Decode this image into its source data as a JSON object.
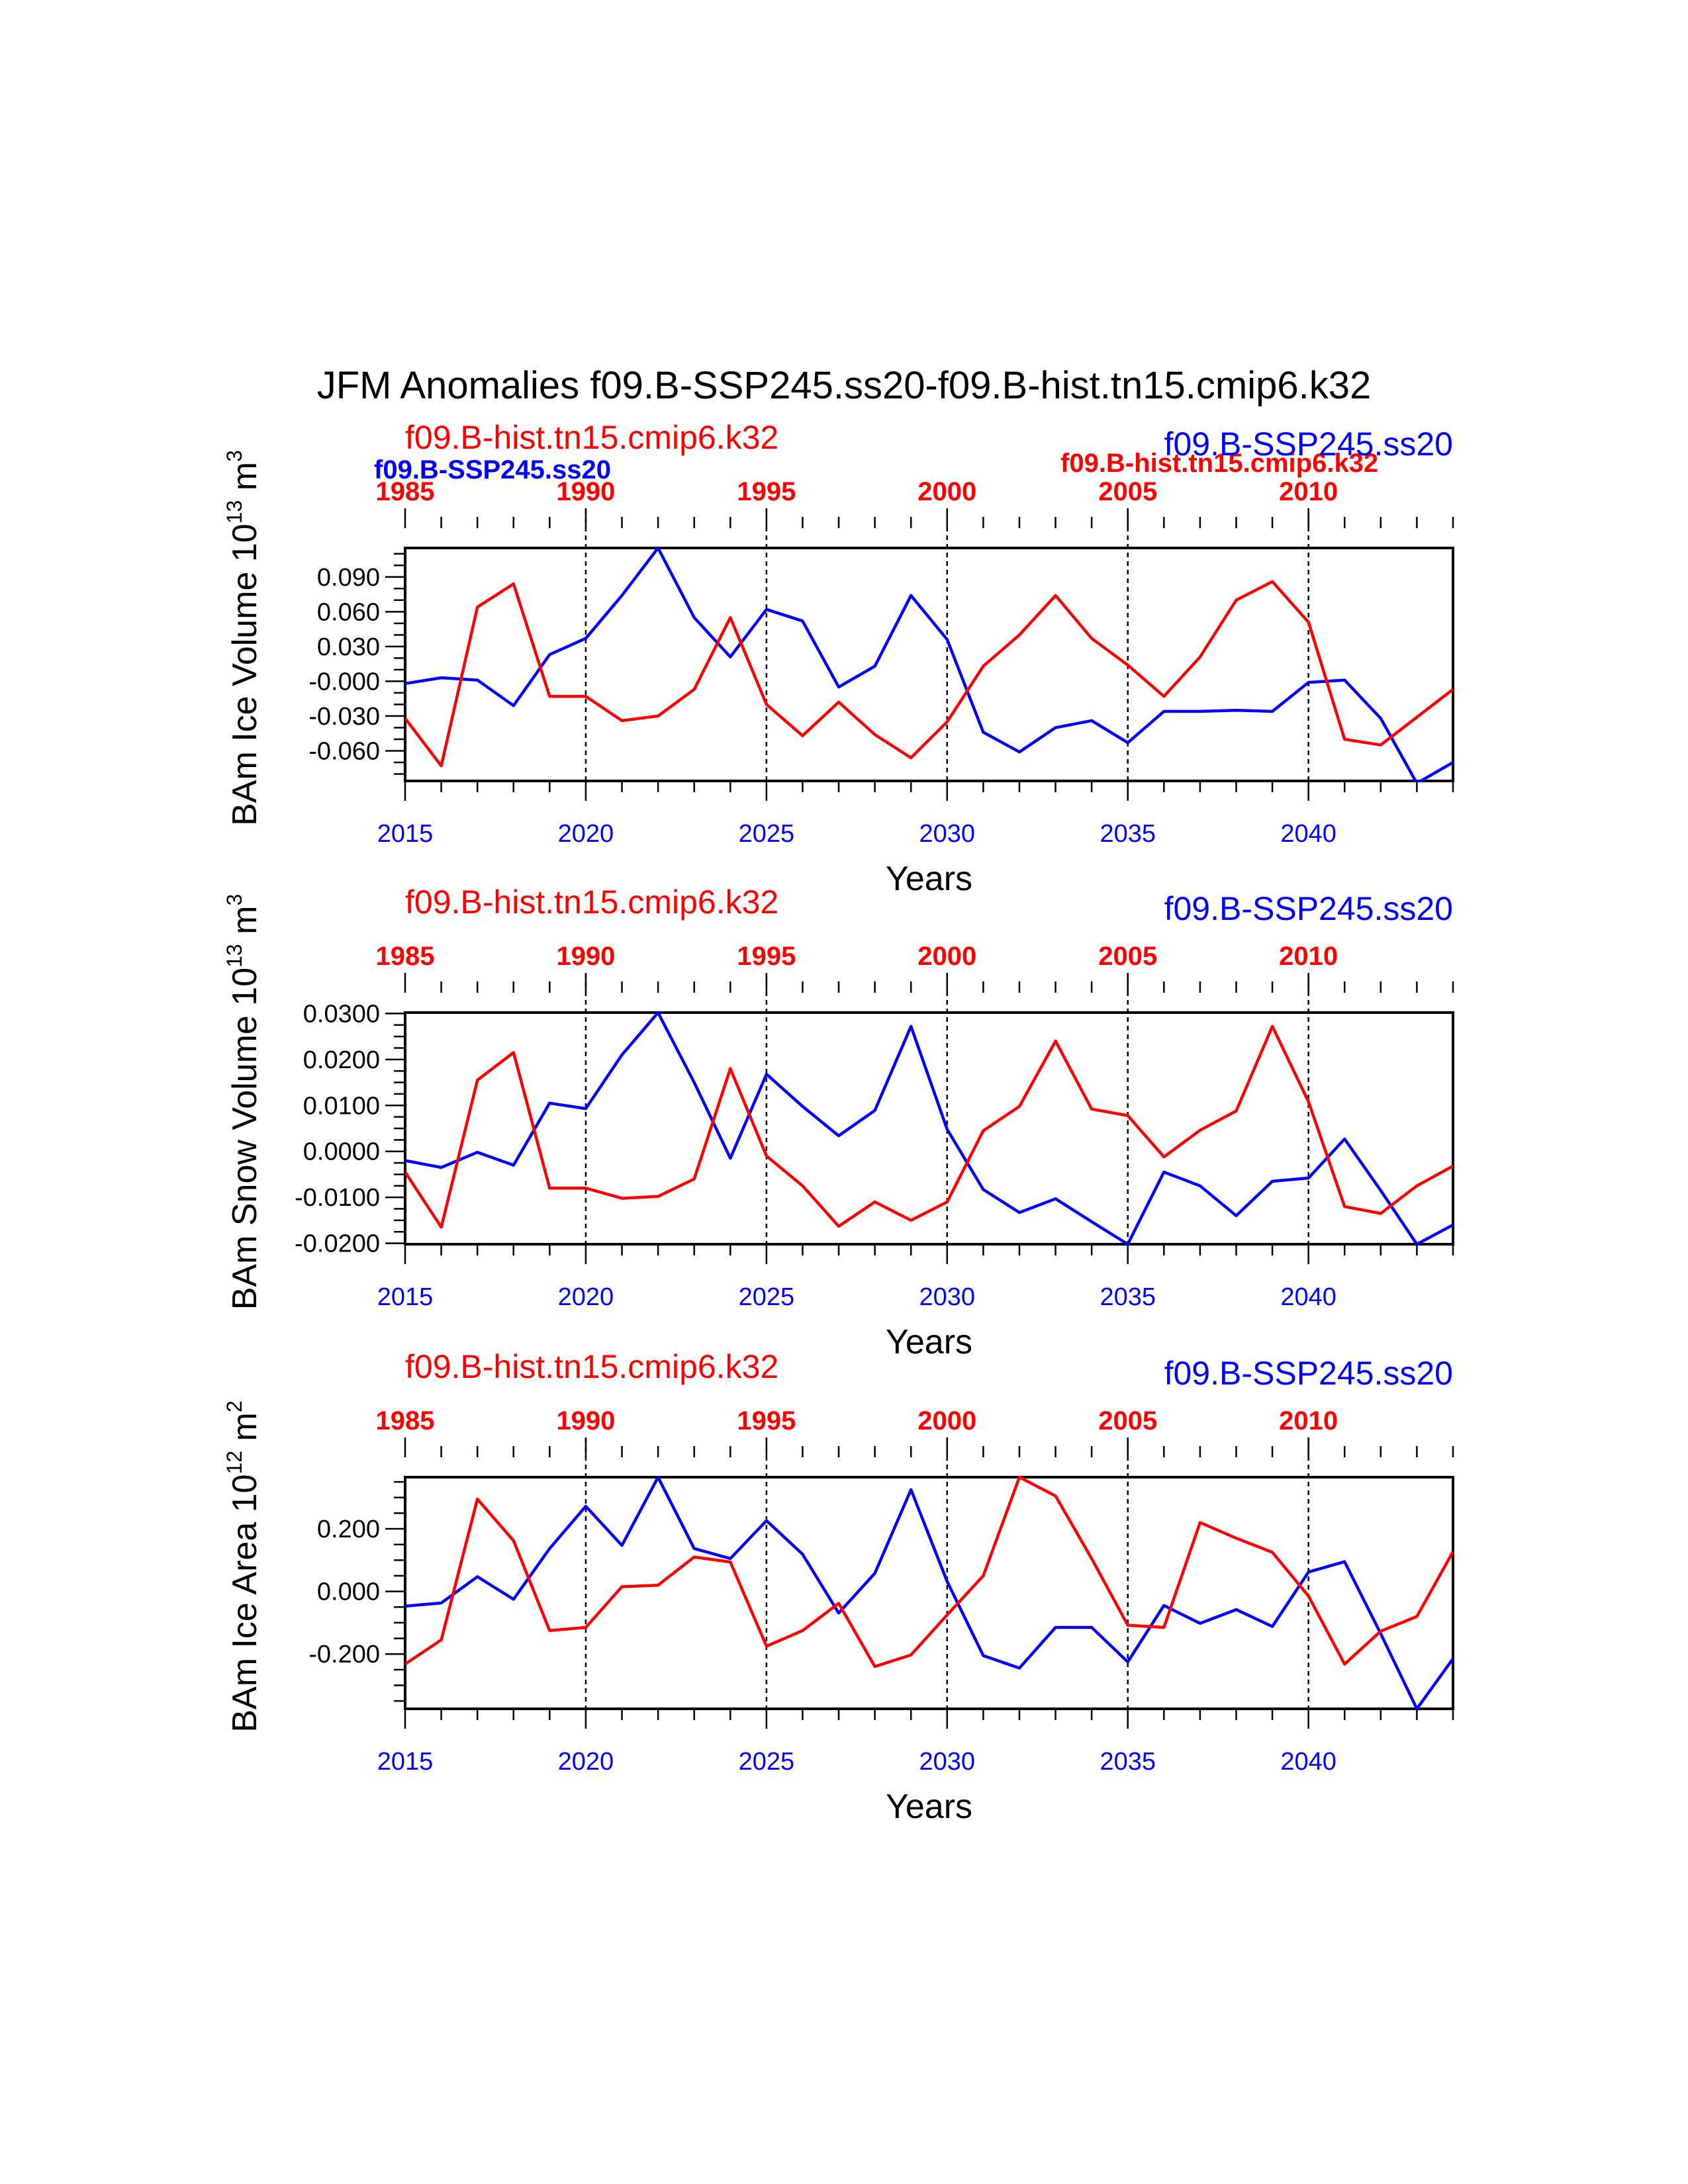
{
  "title": "JFM Anomalies f09.B-SSP245.ss20-f09.B-hist.tn15.cmip6.k32",
  "colors": {
    "ssp": "#0000ff",
    "hist": "#ff0000",
    "axis": "#000000"
  },
  "legend_overlay": {
    "ssp_bold": "f09.B-SSP245.ss20",
    "hist_bold": "f09.B-hist.tn15.cmip6.k32"
  },
  "chart_data": [
    {
      "type": "line",
      "ylabel": "BAm Ice Volume 10",
      "ylabel_exp": "13",
      "ylabel_unit": " m",
      "ylabel_unit_exp": "3",
      "xlabel": "Years",
      "top_case_label": "f09.B-hist.tn15.cmip6.k32",
      "right_case_label": "f09.B-SSP245.ss20",
      "bottom_ticks": [
        "2015",
        "2020",
        "2025",
        "2030",
        "2035",
        "2040"
      ],
      "top_ticks": [
        "1985",
        "1990",
        "1995",
        "2000",
        "2005",
        "2010"
      ],
      "yticks": [
        "0.090",
        "0.060",
        "0.030",
        "-0.000",
        "-0.030",
        "-0.060"
      ],
      "ytick_values": [
        0.09,
        0.06,
        0.03,
        0.0,
        -0.03,
        -0.06
      ],
      "ylim": [
        -0.086,
        0.115
      ],
      "xlim": [
        2015,
        2044
      ],
      "minor_step": 0.01,
      "vlines": [
        2020,
        2025,
        2030,
        2035,
        2040
      ],
      "x": [
        2015,
        2016,
        2017,
        2018,
        2019,
        2020,
        2021,
        2022,
        2023,
        2024,
        2025,
        2026,
        2027,
        2028,
        2029,
        2030,
        2031,
        2032,
        2033,
        2034,
        2035,
        2036,
        2037,
        2038,
        2039,
        2040,
        2041,
        2042,
        2043,
        2044
      ],
      "series": [
        {
          "name": "f09.B-SSP245.ss20",
          "color": "#0000ff",
          "values": [
            -0.002,
            0.003,
            0.001,
            -0.021,
            0.023,
            0.037,
            0.074,
            0.115,
            0.055,
            0.021,
            0.062,
            0.052,
            -0.005,
            0.013,
            0.074,
            0.036,
            -0.044,
            -0.061,
            -0.04,
            -0.034,
            -0.053,
            -0.026,
            -0.026,
            -0.025,
            -0.026,
            -0.001,
            0.001,
            -0.032,
            -0.088,
            -0.07
          ]
        },
        {
          "name": "f09.B-hist.tn15.cmip6.k32",
          "color": "#ff0000",
          "values": [
            -0.032,
            -0.073,
            0.064,
            0.084,
            -0.013,
            -0.013,
            -0.034,
            -0.03,
            -0.007,
            0.055,
            -0.02,
            -0.047,
            -0.018,
            -0.046,
            -0.066,
            -0.035,
            0.013,
            0.04,
            0.074,
            0.037,
            0.014,
            -0.013,
            0.021,
            0.07,
            0.086,
            0.051,
            -0.05,
            -0.055,
            -0.031,
            -0.007
          ]
        }
      ]
    },
    {
      "type": "line",
      "ylabel": "BAm Snow Volume 10",
      "ylabel_exp": "13",
      "ylabel_unit": " m",
      "ylabel_unit_exp": "3",
      "xlabel": "Years",
      "top_case_label": "f09.B-hist.tn15.cmip6.k32",
      "right_case_label": "f09.B-SSP245.ss20",
      "bottom_ticks": [
        "2015",
        "2020",
        "2025",
        "2030",
        "2035",
        "2040"
      ],
      "top_ticks": [
        "1985",
        "1990",
        "1995",
        "2000",
        "2005",
        "2010"
      ],
      "yticks": [
        "0.0300",
        "0.0200",
        "0.0100",
        "0.0000",
        "-0.0100",
        "-0.0200"
      ],
      "ytick_values": [
        0.03,
        0.02,
        0.01,
        0.0,
        -0.01,
        -0.02
      ],
      "ylim": [
        -0.0202,
        0.0302
      ],
      "xlim": [
        2015,
        2044
      ],
      "minor_step": 0.0025,
      "vlines": [
        2020,
        2025,
        2030,
        2035,
        2040
      ],
      "x": [
        2015,
        2016,
        2017,
        2018,
        2019,
        2020,
        2021,
        2022,
        2023,
        2024,
        2025,
        2026,
        2027,
        2028,
        2029,
        2030,
        2031,
        2032,
        2033,
        2034,
        2035,
        2036,
        2037,
        2038,
        2039,
        2040,
        2041,
        2042,
        2043,
        2044
      ],
      "series": [
        {
          "name": "f09.B-SSP245.ss20",
          "color": "#0000ff",
          "values": [
            -0.002,
            -0.0035,
            -0.0002,
            -0.003,
            0.0105,
            0.0093,
            0.021,
            0.0302,
            0.015,
            -0.0015,
            0.0168,
            0.0098,
            0.0034,
            0.0089,
            0.0272,
            0.0048,
            -0.0083,
            -0.0133,
            -0.0103,
            -0.0153,
            -0.0202,
            -0.0045,
            -0.0075,
            -0.014,
            -0.0065,
            -0.0058,
            0.0027,
            -0.0085,
            -0.0202,
            -0.016
          ]
        },
        {
          "name": "f09.B-hist.tn15.cmip6.k32",
          "color": "#ff0000",
          "values": [
            -0.0045,
            -0.0165,
            0.0155,
            0.0215,
            -0.008,
            -0.008,
            -0.0102,
            -0.0098,
            -0.006,
            0.018,
            -0.001,
            -0.0075,
            -0.0163,
            -0.011,
            -0.015,
            -0.011,
            0.0045,
            0.0098,
            0.024,
            0.0092,
            0.0078,
            -0.0012,
            0.0046,
            0.0088,
            0.0272,
            0.0108,
            -0.012,
            -0.0135,
            -0.0075,
            -0.0032
          ]
        }
      ]
    },
    {
      "type": "line",
      "ylabel": "BAm Ice Area 10",
      "ylabel_exp": "12",
      "ylabel_unit": " m",
      "ylabel_unit_exp": "2",
      "xlabel": "Years",
      "top_case_label": "f09.B-hist.tn15.cmip6.k32",
      "right_case_label": "f09.B-SSP245.ss20",
      "bottom_ticks": [
        "2015",
        "2020",
        "2025",
        "2030",
        "2035",
        "2040"
      ],
      "top_ticks": [
        "1985",
        "1990",
        "1995",
        "2000",
        "2005",
        "2010"
      ],
      "yticks": [
        "0.200",
        "0.000",
        "-0.200"
      ],
      "ytick_values": [
        0.2,
        0.0,
        -0.2
      ],
      "ylim": [
        -0.375,
        0.365
      ],
      "xlim": [
        2015,
        2044
      ],
      "minor_step": 0.05,
      "vlines": [
        2020,
        2025,
        2030,
        2035,
        2040
      ],
      "x": [
        2015,
        2016,
        2017,
        2018,
        2019,
        2020,
        2021,
        2022,
        2023,
        2024,
        2025,
        2026,
        2027,
        2028,
        2029,
        2030,
        2031,
        2032,
        2033,
        2034,
        2035,
        2036,
        2037,
        2038,
        2039,
        2040,
        2041,
        2042,
        2043,
        2044
      ],
      "series": [
        {
          "name": "f09.B-SSP245.ss20",
          "color": "#0000ff",
          "values": [
            -0.047,
            -0.037,
            0.047,
            -0.025,
            0.137,
            0.272,
            0.147,
            0.365,
            0.137,
            0.105,
            0.226,
            0.119,
            -0.069,
            0.058,
            0.325,
            0.032,
            -0.205,
            -0.245,
            -0.115,
            -0.115,
            -0.225,
            -0.045,
            -0.102,
            -0.058,
            -0.112,
            0.062,
            0.095,
            -0.135,
            -0.375,
            -0.215
          ]
        },
        {
          "name": "f09.B-hist.tn15.cmip6.k32",
          "color": "#ff0000",
          "values": [
            -0.232,
            -0.155,
            0.295,
            0.162,
            -0.125,
            -0.115,
            0.015,
            0.02,
            0.11,
            0.094,
            -0.175,
            -0.125,
            -0.038,
            -0.24,
            -0.203,
            -0.075,
            0.05,
            0.365,
            0.305,
            0.105,
            -0.108,
            -0.115,
            0.22,
            0.17,
            0.125,
            -0.015,
            -0.232,
            -0.127,
            -0.08,
            0.127
          ]
        }
      ]
    }
  ]
}
